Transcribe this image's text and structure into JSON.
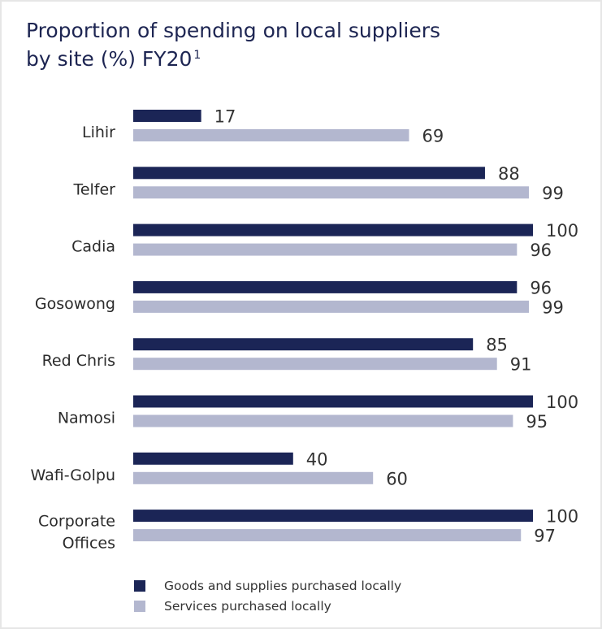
{
  "chart_data": {
    "type": "bar",
    "orientation": "horizontal",
    "title": "Proportion of spending on local suppliers by site (%) FY20",
    "title_lines": [
      "Proportion of spending on local suppliers",
      "by site (%) FY20"
    ],
    "title_note": "1",
    "categories": [
      [
        "Lihir"
      ],
      [
        "Telfer"
      ],
      [
        "Cadia"
      ],
      [
        "Gosowong"
      ],
      [
        "Red Chris"
      ],
      [
        "Namosi"
      ],
      [
        "Wafi-Golpu"
      ],
      [
        "Corporate",
        "Offices"
      ]
    ],
    "series": [
      {
        "name": "Goods and supplies purchased locally",
        "color": "#1b2556",
        "values": [
          17,
          88,
          100,
          96,
          85,
          100,
          40,
          100
        ]
      },
      {
        "name": "Services purchased locally",
        "color": "#b3b7cf",
        "values": [
          69,
          99,
          96,
          99,
          91,
          95,
          60,
          97
        ]
      }
    ],
    "xlim": [
      0,
      100
    ],
    "grid": false,
    "legend": "bottom-left"
  }
}
